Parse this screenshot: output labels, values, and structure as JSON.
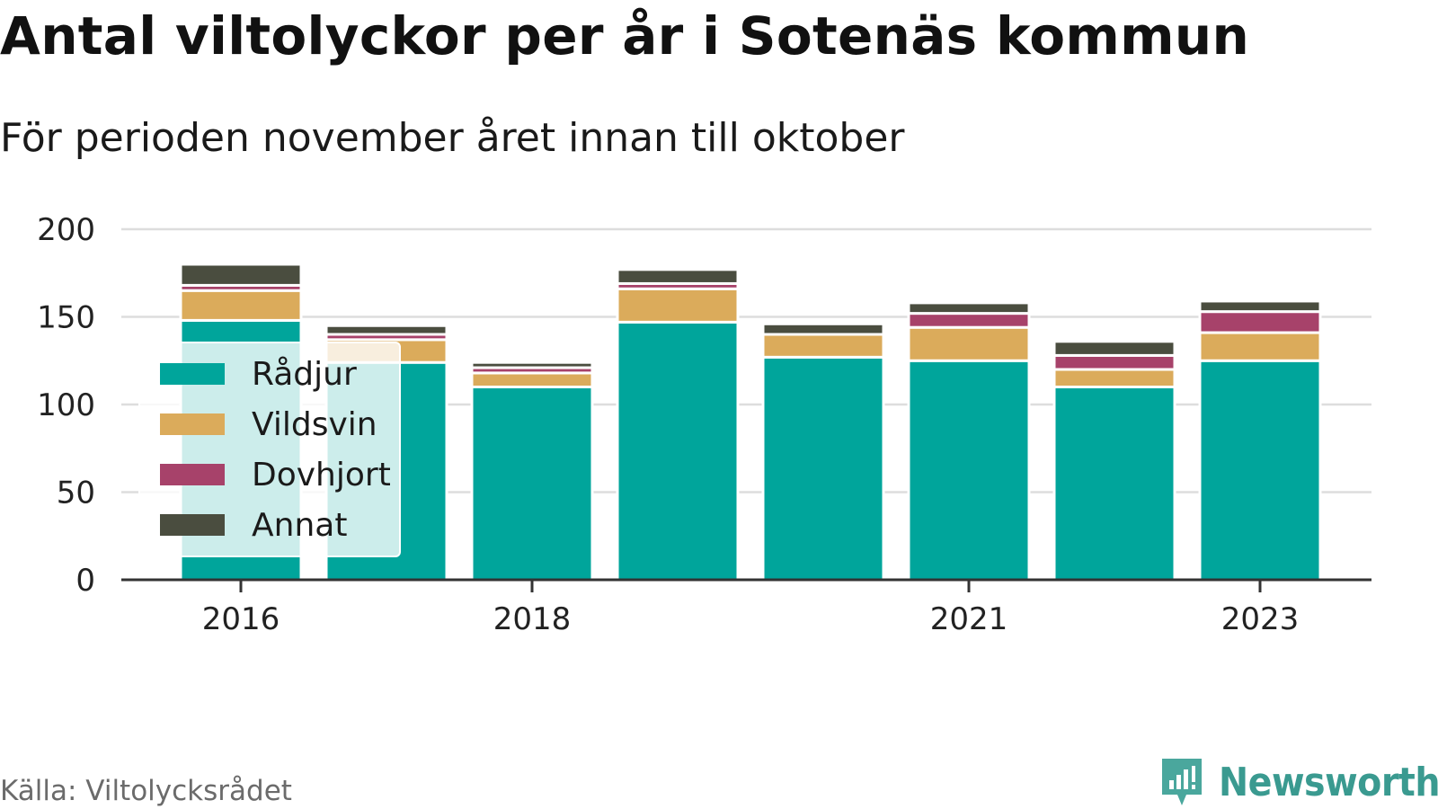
{
  "title": "Antal viltolyckor per år i Sotenäs kommun",
  "subtitle": "För perioden november året innan till oktober",
  "source": "Källa: Viltolycksrådet",
  "brand": {
    "name": "Newsworthy",
    "icon": "newsworthy-logo-icon",
    "color": "#3a9a90"
  },
  "chart_data": {
    "type": "bar",
    "stacked": true,
    "x": [
      2016,
      2017,
      2018,
      2019,
      2020,
      2021,
      2022,
      2023
    ],
    "x_tick_labels": [
      "2016",
      "2018",
      "2021",
      "2023"
    ],
    "x_tick_values": [
      2016,
      2018,
      2021,
      2023
    ],
    "ylim": [
      0,
      200
    ],
    "y_ticks": [
      0,
      50,
      100,
      150,
      200
    ],
    "grid": true,
    "legend_position": "left",
    "series": [
      {
        "name": "Rådjur",
        "color": "#00a59b",
        "values": [
          148,
          124,
          110,
          147,
          127,
          125,
          110,
          125
        ]
      },
      {
        "name": "Vildsvin",
        "color": "#dbab5b",
        "values": [
          17,
          13,
          8,
          19,
          13,
          19,
          10,
          16
        ]
      },
      {
        "name": "Dovhjort",
        "color": "#a7426a",
        "values": [
          3,
          3,
          3,
          3,
          0,
          8,
          8,
          12
        ]
      },
      {
        "name": "Annat",
        "color": "#4a4d3f",
        "values": [
          12,
          5,
          3,
          8,
          6,
          6,
          8,
          6
        ]
      }
    ]
  }
}
